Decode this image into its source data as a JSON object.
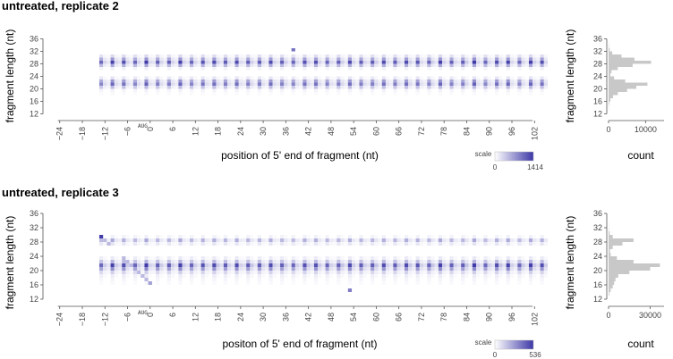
{
  "colors": {
    "heat_low": "#ffffff",
    "heat_high": "#3c37a6",
    "hist_bar": "#c8c8c8",
    "axis": "#555555"
  },
  "chart_data": [
    {
      "type": "heatmap",
      "title": "untreated, replicate 2",
      "xlabel": "position of 5' end of fragment (nt)",
      "ylabel": "fragment length (nt)",
      "x_ticks": [
        -24,
        -18,
        -12,
        -6,
        0,
        6,
        12,
        18,
        24,
        30,
        36,
        42,
        48,
        54,
        60,
        66,
        72,
        78,
        84,
        90,
        96,
        102
      ],
      "y_ticks": [
        12,
        16,
        20,
        24,
        28,
        32,
        36
      ],
      "x_range": [
        -27,
        106
      ],
      "y_range": [
        11,
        37
      ],
      "start_codon_label": "AUG",
      "color_scale": {
        "label": "scale",
        "min": 0,
        "max": 1414,
        "min_label": "0",
        "max_label": "1414"
      },
      "row_profile": {
        "28": 1.0,
        "29": 0.55,
        "27": 0.45,
        "30": 0.2,
        "26": 0.08,
        "21": 0.8,
        "22": 0.55,
        "20": 0.35,
        "23": 0.15,
        "19": 0.07,
        "18": 0.03,
        "17": 0.02
      },
      "frame_intensity": [
        1.0,
        0.25,
        0.15
      ],
      "first_position": -13,
      "peak_value": 1414,
      "hotspots": [
        {
          "x": 38,
          "y": 32,
          "value": 1000
        }
      ],
      "histogram": {
        "xlabel": "count",
        "x_ticks": [
          0,
          10000
        ],
        "x_max": 15000,
        "lengths": [
          12,
          13,
          14,
          15,
          16,
          17,
          18,
          19,
          20,
          21,
          22,
          23,
          24,
          25,
          26,
          27,
          28,
          29,
          30,
          31,
          32,
          33,
          34,
          35,
          36
        ],
        "counts": [
          0,
          30,
          80,
          200,
          500,
          1200,
          2500,
          5000,
          7500,
          10500,
          4500,
          1500,
          500,
          800,
          2500,
          6500,
          11500,
          7000,
          3500,
          1000,
          300,
          100,
          50,
          0,
          0
        ]
      }
    },
    {
      "type": "heatmap",
      "title": "untreated, replicate 3",
      "xlabel": "positon of 5' end of fragment (nt)",
      "ylabel": "fragment length (nt)",
      "x_ticks": [
        -24,
        -18,
        -12,
        -6,
        0,
        6,
        12,
        18,
        24,
        30,
        36,
        42,
        48,
        54,
        60,
        66,
        72,
        78,
        84,
        90,
        96,
        102
      ],
      "y_ticks": [
        12,
        16,
        20,
        24,
        28,
        32,
        36
      ],
      "x_range": [
        -27,
        106
      ],
      "y_range": [
        11,
        37
      ],
      "start_codon_label": "AUG",
      "color_scale": {
        "label": "scale",
        "min": 0,
        "max": 536,
        "min_label": "0",
        "max_label": "536"
      },
      "row_profile": {
        "21": 1.0,
        "20": 0.6,
        "22": 0.4,
        "19": 0.25,
        "23": 0.12,
        "28": 0.45,
        "27": 0.15,
        "29": 0.08,
        "18": 0.1,
        "17": 0.06,
        "16": 0.03
      },
      "frame_intensity": [
        1.0,
        0.3,
        0.18
      ],
      "first_position": -13,
      "peak_value": 536,
      "hotspots": [
        {
          "x": -13,
          "y": 29,
          "value": 520
        },
        {
          "x": 53,
          "y": 14,
          "value": 350
        },
        {
          "x": 0,
          "y": 16,
          "value": 250
        }
      ],
      "histogram": {
        "xlabel": "count",
        "x_ticks": [
          0,
          30000
        ],
        "x_max": 40000,
        "lengths": [
          12,
          13,
          14,
          15,
          16,
          17,
          18,
          19,
          20,
          21,
          22,
          23,
          24,
          25,
          26,
          27,
          28,
          29,
          30,
          31,
          32,
          33,
          34,
          35,
          36
        ],
        "counts": [
          0,
          500,
          1500,
          3000,
          4000,
          5000,
          7000,
          15000,
          30000,
          37000,
          18000,
          6000,
          1500,
          1000,
          3000,
          10000,
          18000,
          3000,
          800,
          200,
          100,
          50,
          0,
          0,
          0
        ]
      }
    }
  ]
}
